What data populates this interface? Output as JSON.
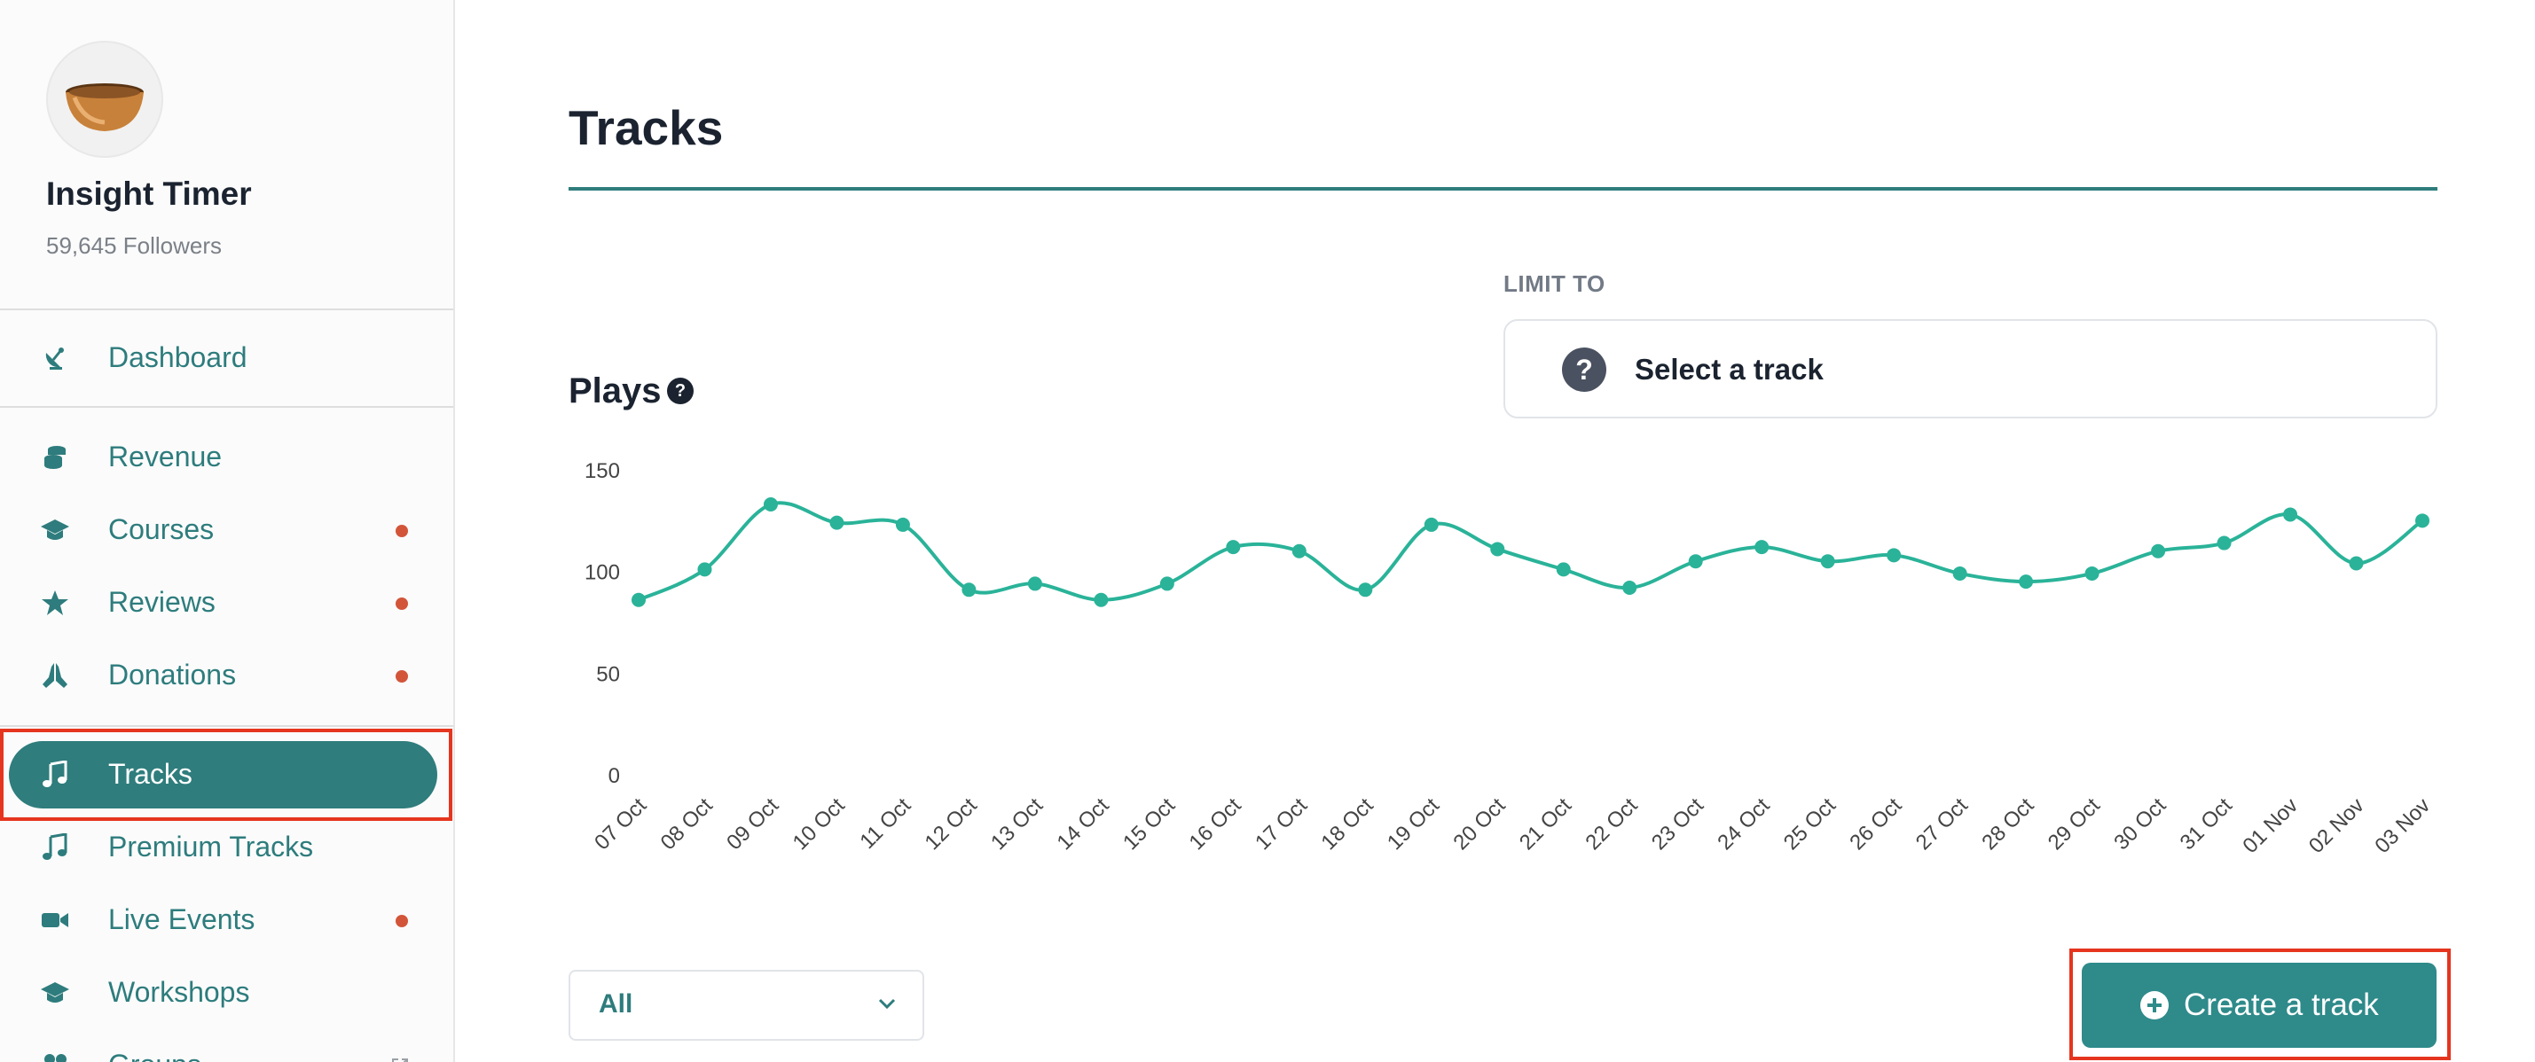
{
  "profile": {
    "name": "Insight Timer",
    "followers": "59,645 Followers",
    "avatar_icon": "singing-bowl-icon"
  },
  "sidebar": {
    "items": [
      {
        "label": "Dashboard",
        "icon": "satellite-dish-icon",
        "dot": false
      },
      {
        "label": "Revenue",
        "icon": "coins-icon",
        "dot": false
      },
      {
        "label": "Courses",
        "icon": "graduation-cap-icon",
        "dot": true
      },
      {
        "label": "Reviews",
        "icon": "star-icon",
        "dot": true
      },
      {
        "label": "Donations",
        "icon": "praying-hands-icon",
        "dot": true
      },
      {
        "label": "Tracks",
        "icon": "music-note-icon",
        "dot": false,
        "active": true
      },
      {
        "label": "Premium Tracks",
        "icon": "music-note-icon",
        "dot": false
      },
      {
        "label": "Live Events",
        "icon": "video-camera-icon",
        "dot": true
      },
      {
        "label": "Workshops",
        "icon": "graduation-cap-icon",
        "dot": false
      },
      {
        "label": "Groups",
        "icon": "users-icon",
        "dot": false
      }
    ]
  },
  "main": {
    "title": "Tracks",
    "limit_to_label": "LIMIT TO",
    "track_select_label": "Select a track",
    "plays_title": "Plays",
    "filter_select_value": "All",
    "create_button_label": "Create a track"
  },
  "colors": {
    "accent": "#2f7d7d",
    "line": "#2ab399",
    "dot": "#d2553a",
    "highlight": "#e5351f"
  },
  "chart_data": {
    "type": "line",
    "title": "Plays",
    "xlabel": "",
    "ylabel": "",
    "ylim": [
      0,
      150
    ],
    "yticks": [
      0,
      50,
      100,
      150
    ],
    "grid": false,
    "categories": [
      "07 Oct",
      "08 Oct",
      "09 Oct",
      "10 Oct",
      "11 Oct",
      "12 Oct",
      "13 Oct",
      "14 Oct",
      "15 Oct",
      "16 Oct",
      "17 Oct",
      "18 Oct",
      "19 Oct",
      "20 Oct",
      "21 Oct",
      "22 Oct",
      "23 Oct",
      "24 Oct",
      "25 Oct",
      "26 Oct",
      "27 Oct",
      "28 Oct",
      "29 Oct",
      "30 Oct",
      "31 Oct",
      "01 Nov",
      "02 Nov",
      "03 Nov"
    ],
    "series": [
      {
        "values": [
          86,
          101,
          133,
          124,
          123,
          91,
          94,
          86,
          94,
          112,
          110,
          91,
          123,
          111,
          101,
          92,
          105,
          112,
          105,
          108,
          99,
          95,
          99,
          110,
          114,
          128,
          104,
          125
        ]
      }
    ]
  }
}
